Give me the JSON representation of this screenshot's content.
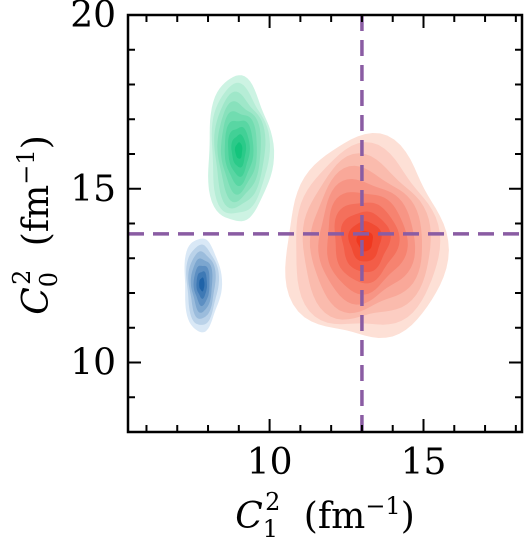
{
  "chart_data": {
    "type": "contour",
    "title": "",
    "xlabel": {
      "symbol": "C",
      "sub": "1",
      "sup": "2",
      "unit": "(fm",
      "unit_sup": "−1",
      "unit_close": ")"
    },
    "ylabel": {
      "symbol": "C",
      "sub": "0",
      "sup": "2",
      "unit": "(fm",
      "unit_sup": "−1",
      "unit_close": ")"
    },
    "xlim": [
      5.4,
      18.2
    ],
    "ylim": [
      8.0,
      20.0
    ],
    "x_ticks": [
      10,
      15
    ],
    "y_ticks": [
      10,
      15,
      20
    ],
    "x_tick_labels": [
      "10",
      "15"
    ],
    "y_tick_labels": [
      "10",
      "15",
      "20"
    ],
    "grid": false,
    "reference_lines": {
      "color": "#8a5ca3",
      "x": 13.0,
      "y": 13.7
    },
    "distributions": [
      {
        "color_light": "#fde0d6",
        "color_dark": "#f0381f",
        "center": [
          13.1,
          13.5
        ],
        "spread": [
          2.6,
          2.9
        ],
        "levels": 10
      },
      {
        "color_light": "#cdf3e3",
        "color_dark": "#14c47c",
        "center": [
          9.0,
          16.1
        ],
        "spread": [
          1.05,
          2.1
        ],
        "levels": 9
      },
      {
        "color_light": "#d9e8f6",
        "color_dark": "#1f63a8",
        "center": [
          7.8,
          12.25
        ],
        "spread": [
          0.6,
          1.35
        ],
        "levels": 7
      }
    ]
  }
}
